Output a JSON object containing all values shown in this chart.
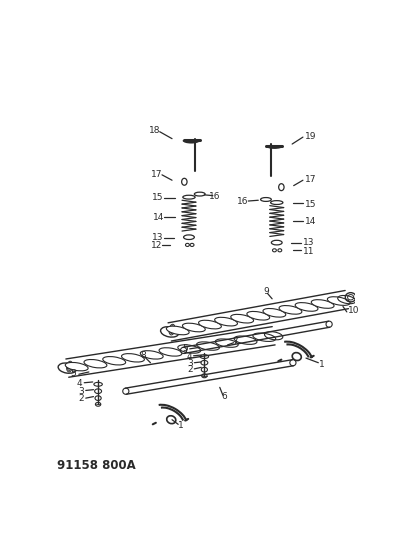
{
  "title_code": "91158 800A",
  "bg_color": "#ffffff",
  "line_color": "#2a2a2a",
  "lw": 0.9,
  "fig_w": 3.95,
  "fig_h": 5.33,
  "dpi": 100
}
